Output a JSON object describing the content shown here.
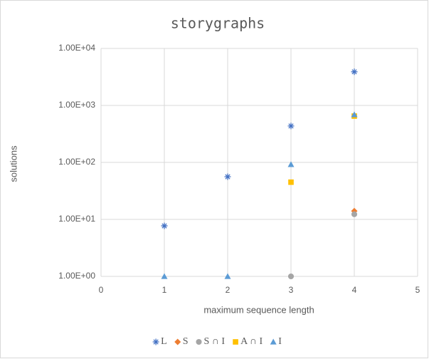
{
  "chart_data": {
    "type": "scatter",
    "title": "storygraphs",
    "x_label": "maximum sequence length",
    "y_label": "solutions",
    "xlim": [
      0,
      5
    ],
    "xticks": [
      0,
      1,
      2,
      3,
      4,
      5
    ],
    "ylim": [
      1,
      10000
    ],
    "log_y": true,
    "yticks": [
      {
        "value": 1,
        "label": "1.00E+00"
      },
      {
        "value": 10,
        "label": "1.00E+01"
      },
      {
        "value": 100,
        "label": "1.00E+02"
      },
      {
        "value": 1000,
        "label": "1.00E+03"
      },
      {
        "value": 10000,
        "label": "1.00E+04"
      }
    ],
    "grid": true,
    "legend": "bottom",
    "series": [
      {
        "name": "L",
        "color": "#4472c4",
        "marker": "asterisk",
        "x": [
          1,
          2,
          3,
          4
        ],
        "values": [
          7.7,
          56,
          436,
          3890
        ]
      },
      {
        "name": "S",
        "color": "#ed7d31",
        "marker": "diamond",
        "x": [
          4
        ],
        "values": [
          14
        ]
      },
      {
        "name": "S ∩ I",
        "color": "#a5a5a5",
        "marker": "circle",
        "x": [
          3,
          4
        ],
        "values": [
          1,
          12.3
        ]
      },
      {
        "name": "A ∩ I",
        "color": "#ffc000",
        "marker": "square",
        "x": [
          3,
          4
        ],
        "values": [
          45,
          650
        ]
      },
      {
        "name": "I",
        "color": "#5b9bd5",
        "marker": "triangle",
        "x": [
          1,
          2,
          3,
          4
        ],
        "values": [
          1,
          1,
          92,
          690
        ]
      }
    ]
  }
}
